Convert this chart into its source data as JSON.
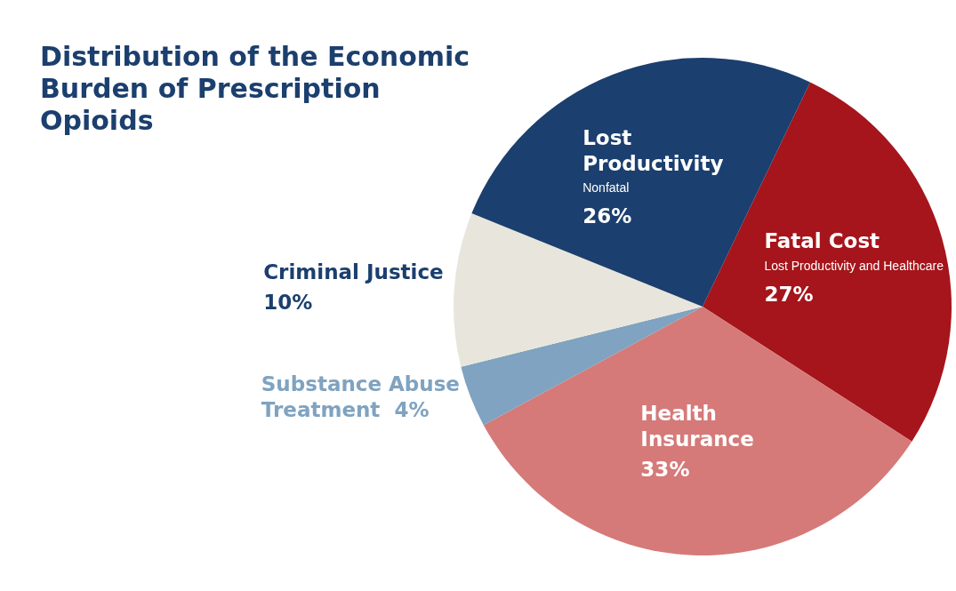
{
  "chart_data": {
    "type": "pie",
    "title": "Distribution of the Economic Burden of Prescription Opioids",
    "categories": [
      "Fatal Cost",
      "Health Insurance",
      "Substance Abuse Treatment",
      "Criminal Justice",
      "Lost Productivity"
    ],
    "values": [
      27,
      33,
      4,
      10,
      26
    ],
    "value_labels": [
      "27%",
      "33%",
      "4%",
      "10%",
      "26%"
    ],
    "colors": [
      "#a5151b",
      "#d57a79",
      "#7fa3c0",
      "#e8e6dc",
      "#1b3f6e"
    ],
    "legend": false,
    "annotations": [
      {
        "text": "Lost Productivity and Healthcare",
        "x": "Fatal Cost"
      },
      {
        "text": "Nonfatal",
        "x": "Lost Productivity"
      }
    ]
  }
}
